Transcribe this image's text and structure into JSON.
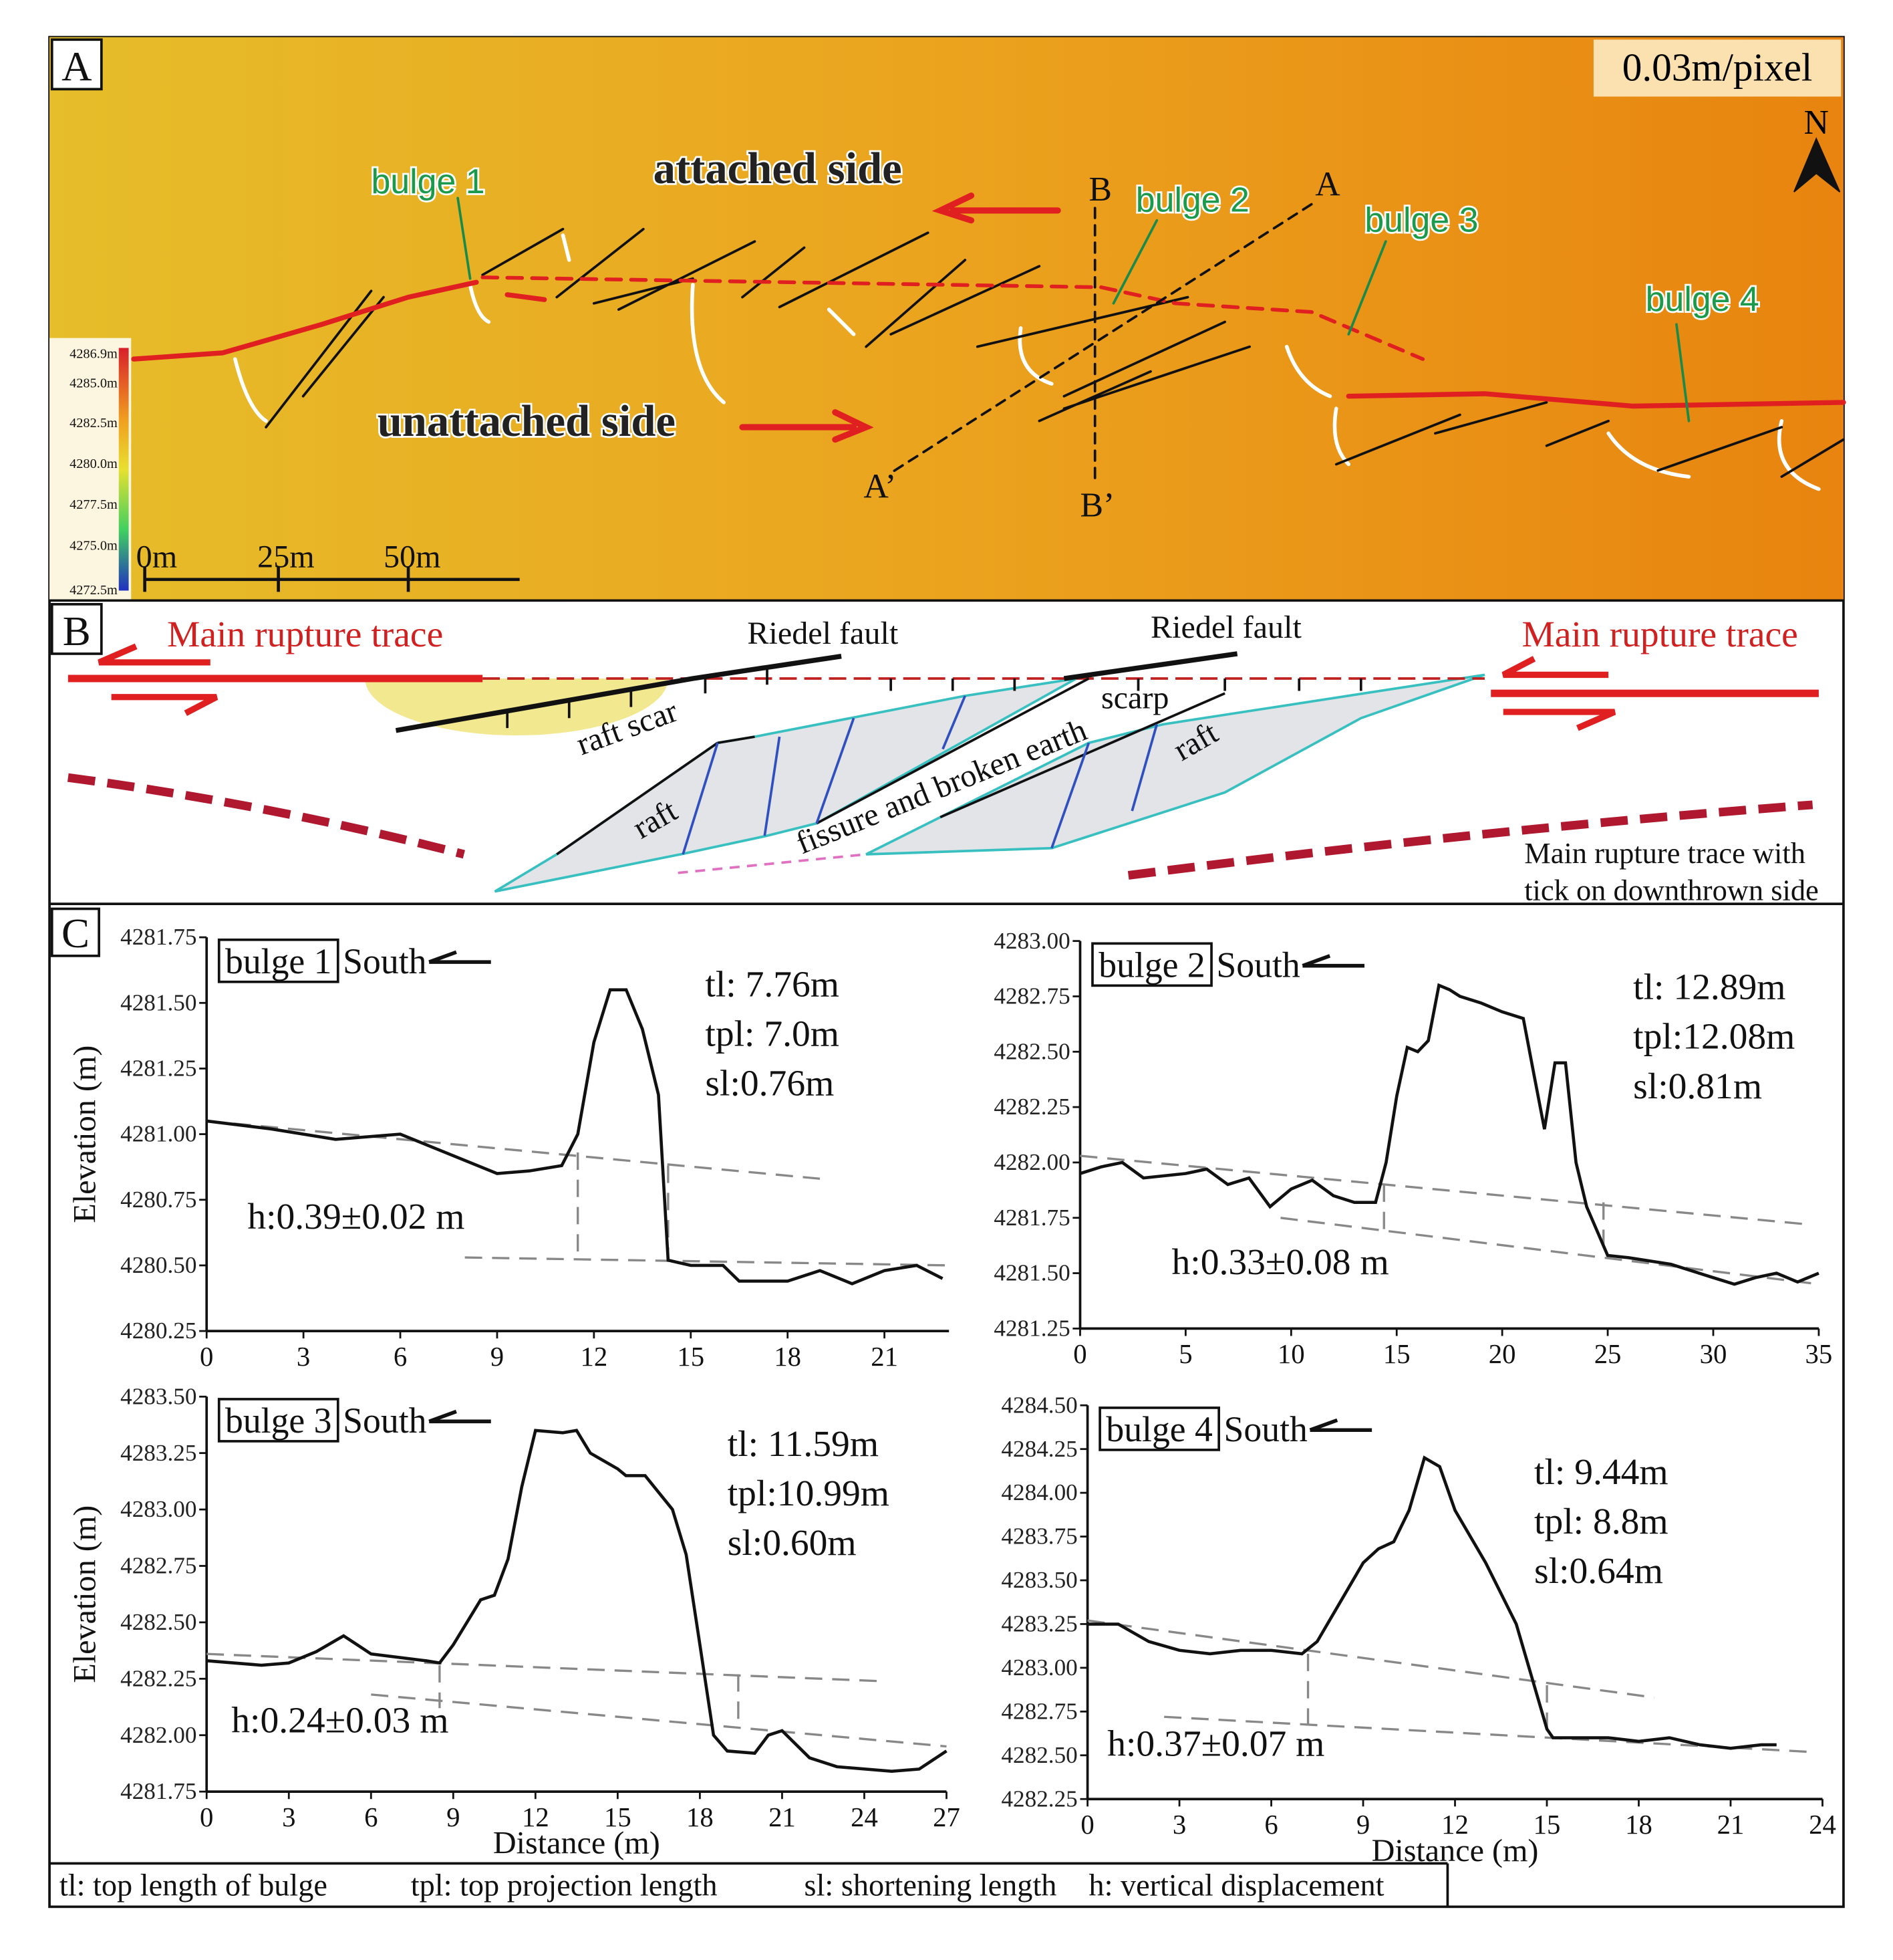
{
  "panel_a": {
    "label": "A",
    "resolution": "0.03m/pixel",
    "north": "N",
    "sides": [
      "attached side",
      "unattached side"
    ],
    "bulges": [
      "bulge 1",
      "bulge 2",
      "bulge 3",
      "bulge 4"
    ],
    "profile_ends": [
      "B",
      "B’",
      "A",
      "A’"
    ],
    "colorbar_labels": [
      "4286.9m",
      "4285.0m",
      "4282.5m",
      "4280.0m",
      "4277.5m",
      "4275.0m",
      "4272.5m"
    ],
    "scale_labels": [
      "0m",
      "25m",
      "50m"
    ]
  },
  "panel_b": {
    "label": "B",
    "main_trace": [
      "Main rupture trace",
      "Main rupture trace"
    ],
    "riedel": [
      "Riedel fault",
      "Riedel fault"
    ],
    "raft_scar": "raft scar",
    "scarp": "scarp",
    "raft": [
      "raft",
      "raft"
    ],
    "fissure": "fissure and broken earth",
    "legend": [
      "Main rupture trace with",
      "tick on downthrown side"
    ]
  },
  "panel_c_label": "C",
  "chart_data": [
    {
      "type": "line",
      "title": "bulge 1",
      "direction": "South",
      "y_label": "Elevation (m)",
      "annotations": [
        "tl: 7.76m",
        "tpl: 7.0m",
        "sl:0.76m"
      ],
      "displacement": "h:0.39±0.02 m",
      "xlim": [
        0,
        23
      ],
      "xticks": [
        0,
        3,
        6,
        9,
        12,
        15,
        18,
        21
      ],
      "ylim": [
        4280.25,
        4281.75
      ],
      "yticks": [
        4280.25,
        {
          "value": 4280.5,
          "label": "4280.50"
        },
        4280.75,
        {
          "value": 4281,
          "label": "4281.00"
        },
        4281.25,
        {
          "value": 4281.5,
          "label": "4281.50"
        },
        4281.75
      ],
      "x": [
        0,
        2,
        4,
        6,
        7,
        8,
        9,
        10,
        11,
        11.5,
        12,
        12.5,
        13,
        13.5,
        14,
        14.3,
        15,
        16,
        16.5,
        18,
        19,
        20,
        21,
        22,
        22.8
      ],
      "values": [
        4281.05,
        4281.02,
        4280.98,
        4281.0,
        4280.95,
        4280.9,
        4280.85,
        4280.86,
        4280.88,
        4281.0,
        4281.35,
        4281.55,
        4281.55,
        4281.4,
        4281.15,
        4280.52,
        4280.5,
        4280.5,
        4280.44,
        4280.44,
        4280.48,
        4280.43,
        4280.48,
        4280.5,
        4280.45
      ],
      "reference_lines": [
        {
          "x": [
            0,
            19
          ],
          "values": [
            4281.05,
            4280.83
          ]
        },
        {
          "x": [
            8,
            23
          ],
          "values": [
            4280.53,
            4280.5
          ]
        },
        {
          "x": [
            11.5,
            11.5
          ],
          "values": [
            4280.93,
            4280.53
          ]
        },
        {
          "x": [
            14.3,
            14.3
          ],
          "values": [
            4280.88,
            4280.52
          ]
        }
      ]
    },
    {
      "type": "line",
      "title": "bulge 2",
      "direction": "South",
      "annotations": [
        "tl: 12.89m",
        "tpl:12.08m",
        "sl:0.81m"
      ],
      "displacement": "h:0.33±0.08 m",
      "xlim": [
        0,
        35
      ],
      "xticks": [
        0,
        5,
        10,
        15,
        20,
        25,
        30,
        35
      ],
      "ylim": [
        4281.25,
        4283
      ],
      "yticks": [
        4281.25,
        {
          "value": 4281.5,
          "label": "4281.50"
        },
        4281.75,
        {
          "value": 4282,
          "label": "4282.00"
        },
        4282.25,
        {
          "value": 4282.5,
          "label": "4282.50"
        },
        4282.75,
        {
          "value": 4283,
          "label": "4283.00"
        }
      ],
      "x": [
        0,
        1,
        2,
        3,
        5,
        6,
        7,
        8,
        9,
        10,
        11,
        12,
        13,
        14,
        14.5,
        15,
        15.5,
        16,
        16.5,
        17,
        17.5,
        18,
        19,
        20,
        21,
        21.5,
        22,
        22.5,
        23,
        23.5,
        24,
        25,
        26,
        28,
        30,
        31,
        32,
        33,
        34,
        35
      ],
      "values": [
        4281.95,
        4281.98,
        4282.0,
        4281.93,
        4281.95,
        4281.97,
        4281.9,
        4281.93,
        4281.8,
        4281.88,
        4281.92,
        4281.85,
        4281.82,
        4281.82,
        4282.0,
        4282.3,
        4282.52,
        4282.5,
        4282.55,
        4282.8,
        4282.78,
        4282.75,
        4282.72,
        4282.68,
        4282.65,
        4282.4,
        4282.15,
        4282.45,
        4282.45,
        4282.0,
        4281.8,
        4281.58,
        4281.57,
        4281.54,
        4281.48,
        4281.45,
        4281.48,
        4281.5,
        4281.46,
        4281.5
      ],
      "reference_lines": [
        {
          "x": [
            0,
            34.5
          ],
          "values": [
            4282.03,
            4281.72
          ]
        },
        {
          "x": [
            9.5,
            35
          ],
          "values": [
            4281.75,
            4281.45
          ]
        },
        {
          "x": [
            14.4,
            14.4
          ],
          "values": [
            4281.9,
            4281.68
          ]
        },
        {
          "x": [
            24.8,
            24.8
          ],
          "values": [
            4281.82,
            4281.58
          ]
        }
      ]
    },
    {
      "type": "line",
      "title": "bulge 3",
      "direction": "South",
      "y_label": "Elevation (m)",
      "x_label": "Distance (m)",
      "annotations": [
        "tl: 11.59m",
        "tpl:10.99m",
        "sl:0.60m"
      ],
      "displacement": "h:0.24±0.03 m",
      "xlim": [
        0,
        27
      ],
      "xticks": [
        0,
        3,
        6,
        9,
        12,
        15,
        18,
        21,
        24,
        27
      ],
      "ylim": [
        4281.75,
        4283.5
      ],
      "yticks": [
        4281.75,
        {
          "value": 4282,
          "label": "4282.00"
        },
        4282.25,
        {
          "value": 4282.5,
          "label": "4282.50"
        },
        4282.75,
        {
          "value": 4283,
          "label": "4283.00"
        },
        4283.25,
        {
          "value": 4283.5,
          "label": "4283.50"
        }
      ],
      "x": [
        0,
        2,
        3,
        4,
        5,
        5.5,
        6,
        8,
        8.5,
        9,
        9.5,
        10,
        10.5,
        11,
        11.5,
        12,
        13,
        13.5,
        14,
        15,
        15.3,
        16,
        17,
        17.5,
        18,
        18.5,
        19,
        20,
        20.5,
        21,
        22,
        23,
        25,
        26,
        27
      ],
      "values": [
        4282.33,
        4282.31,
        4282.32,
        4282.37,
        4282.44,
        4282.4,
        4282.36,
        4282.33,
        4282.32,
        4282.4,
        4282.5,
        4282.6,
        4282.62,
        4282.78,
        4283.1,
        4283.35,
        4283.34,
        4283.35,
        4283.25,
        4283.18,
        4283.15,
        4283.15,
        4283.0,
        4282.8,
        4282.4,
        4282.0,
        4281.93,
        4281.92,
        4282.0,
        4282.02,
        4281.9,
        4281.86,
        4281.84,
        4281.85,
        4281.93
      ],
      "reference_lines": [
        {
          "x": [
            0,
            24.5
          ],
          "values": [
            4282.36,
            4282.24
          ]
        },
        {
          "x": [
            6,
            27
          ],
          "values": [
            4282.18,
            4281.95
          ]
        },
        {
          "x": [
            8.5,
            8.5
          ],
          "values": [
            4282.31,
            4282.12
          ]
        },
        {
          "x": [
            19.4,
            19.4
          ],
          "values": [
            4282.27,
            4282.04
          ]
        }
      ]
    },
    {
      "type": "line",
      "title": "bulge 4",
      "direction": "South",
      "x_label": "Distance (m)",
      "annotations": [
        "tl: 9.44m",
        "tpl: 8.8m",
        "sl:0.64m"
      ],
      "displacement": "h:0.37±0.07 m",
      "xlim": [
        0,
        24
      ],
      "xticks": [
        0,
        3,
        6,
        9,
        12,
        15,
        18,
        21,
        24
      ],
      "ylim": [
        4282.25,
        4284.5
      ],
      "yticks": [
        4282.25,
        {
          "value": 4282.5,
          "label": "4282.50"
        },
        4282.75,
        {
          "value": 4283,
          "label": "4283.00"
        },
        4283.25,
        {
          "value": 4283.5,
          "label": "4283.50"
        },
        4283.75,
        {
          "value": 4284,
          "label": "4284.00"
        },
        4284.25,
        {
          "value": 4284.5,
          "label": "4284.50"
        }
      ],
      "x": [
        0,
        1,
        2,
        3,
        4,
        5,
        6,
        7,
        7.5,
        8,
        9,
        9.5,
        10,
        10.5,
        11,
        11.5,
        12,
        13,
        14,
        14.5,
        15,
        15.2,
        17,
        18,
        19,
        20,
        21,
        22,
        22.5
      ],
      "values": [
        4283.25,
        4283.25,
        4283.15,
        4283.1,
        4283.08,
        4283.1,
        4283.1,
        4283.08,
        4283.15,
        4283.3,
        4283.6,
        4283.68,
        4283.72,
        4283.9,
        4284.2,
        4284.15,
        4283.9,
        4283.6,
        4283.25,
        4282.95,
        4282.65,
        4282.6,
        4282.6,
        4282.58,
        4282.6,
        4282.56,
        4282.54,
        4282.56,
        4282.56
      ],
      "reference_lines": [
        {
          "x": [
            0,
            18.5
          ],
          "values": [
            4283.27,
            4282.83
          ]
        },
        {
          "x": [
            2.5,
            23.5
          ],
          "values": [
            4282.72,
            4282.52
          ]
        },
        {
          "x": [
            7.2,
            7.2
          ],
          "values": [
            4283.08,
            4282.66
          ]
        },
        {
          "x": [
            15,
            15
          ],
          "values": [
            4282.9,
            4282.6
          ]
        }
      ]
    }
  ],
  "footer": [
    "tl: top length of bulge",
    "tpl: top projection length",
    "sl: shortening length",
    "h: vertical displacement"
  ]
}
